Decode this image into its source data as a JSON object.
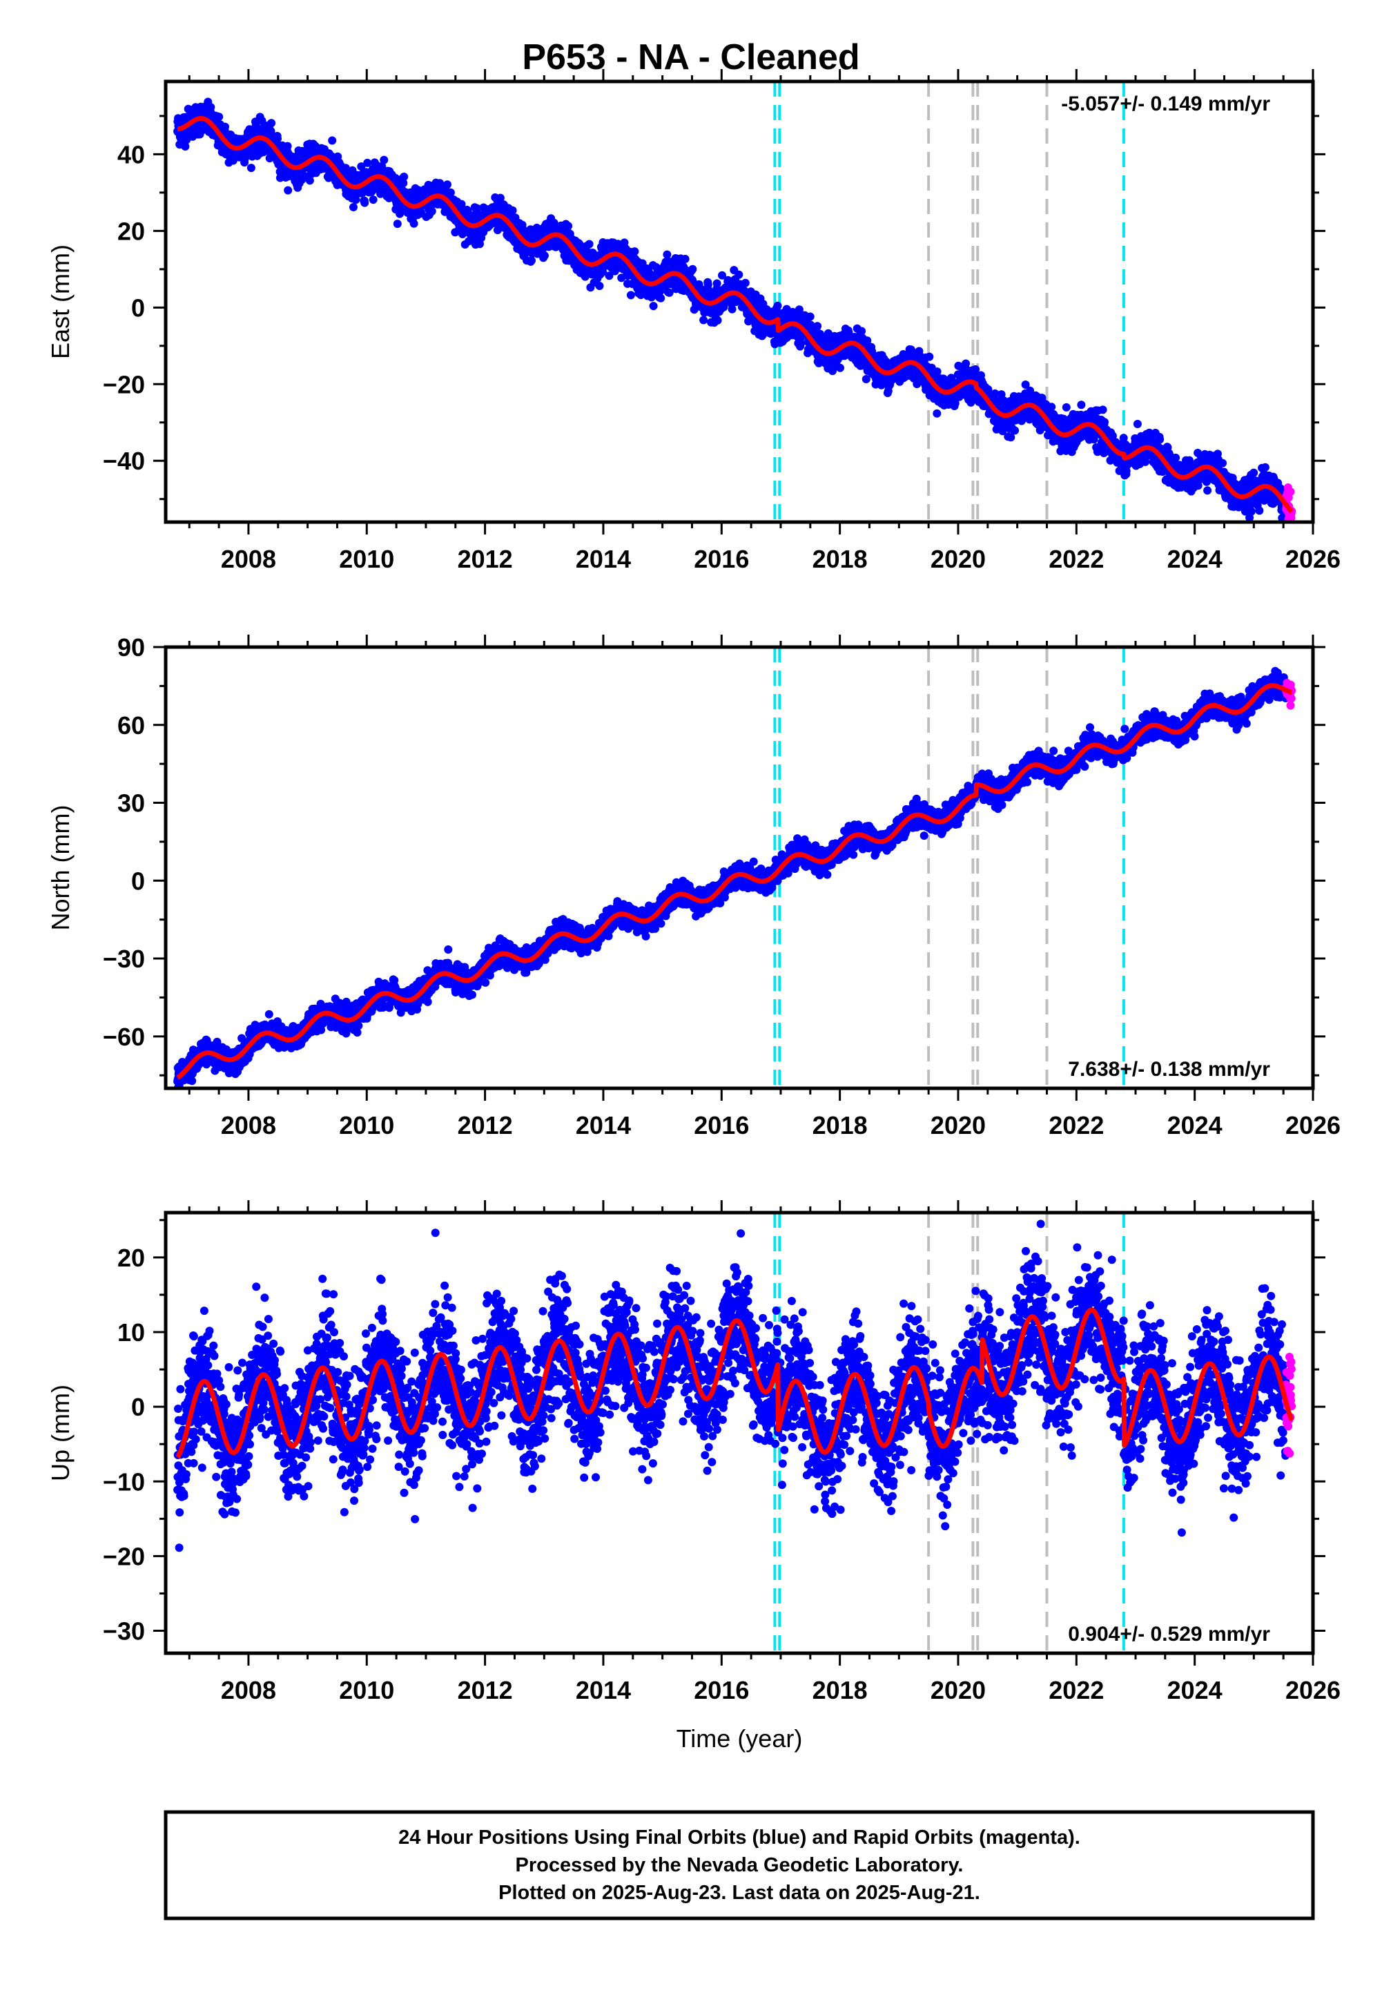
{
  "title": "P653  - NA - Cleaned",
  "chart_data": [
    {
      "type": "scatter",
      "ylabel": "East (mm)",
      "xlim": [
        2006.6,
        2026.0
      ],
      "ylim": [
        -56,
        59
      ],
      "yticks": [
        -40,
        -20,
        0,
        20,
        40
      ],
      "xticks": [
        2008,
        2010,
        2012,
        2014,
        2016,
        2018,
        2020,
        2022,
        2024,
        2026
      ],
      "rate_label": "-5.057+/- 0.149 mm/yr",
      "rate_position": "top-right",
      "model": {
        "start_year": 2006.8,
        "start_value": 49,
        "rate": -5.057,
        "seasonal_amplitude": 2.5,
        "scatter": 2.0
      },
      "offsets": [
        {
          "year": 2016.95,
          "shift": -3.0
        },
        {
          "year": 2020.3,
          "shift": -1.0
        },
        {
          "year": 2022.8,
          "shift": -1.0
        }
      ],
      "series": [
        {
          "values": "daily"
        }
      ]
    },
    {
      "type": "scatter",
      "ylabel": "North (mm)",
      "xlim": [
        2006.6,
        2026.0
      ],
      "ylim": [
        -80,
        90
      ],
      "yticks": [
        -60,
        -30,
        0,
        30,
        60,
        90
      ],
      "xticks": [
        2008,
        2010,
        2012,
        2014,
        2016,
        2018,
        2020,
        2022,
        2024,
        2026
      ],
      "rate_label": "7.638+/- 0.138 mm/yr",
      "rate_position": "bottom-right",
      "model": {
        "start_year": 2006.8,
        "start_value": -73,
        "rate": 7.638,
        "seasonal_amplitude": 3.0,
        "scatter": 2.2
      },
      "offsets": [
        {
          "year": 2020.3,
          "shift": 4.0
        }
      ],
      "series": [
        {
          "values": "daily"
        }
      ]
    },
    {
      "type": "scatter",
      "ylabel": "Up (mm)",
      "xlabel": "Time (year)",
      "xlim": [
        2006.6,
        2026.0
      ],
      "ylim": [
        -33,
        26
      ],
      "yticks": [
        -30,
        -20,
        -10,
        0,
        10,
        20
      ],
      "xticks": [
        2008,
        2010,
        2012,
        2014,
        2016,
        2018,
        2020,
        2022,
        2024,
        2026
      ],
      "rate_label": "0.904+/- 0.529 mm/yr",
      "rate_position": "bottom-right",
      "model": {
        "start_year": 2006.8,
        "start_value": -2,
        "rate": 0.904,
        "seasonal_amplitude": 5.0,
        "scatter": 4.0
      },
      "offsets": [
        {
          "year": 2016.95,
          "shift": -9.0
        },
        {
          "year": 2019.5,
          "shift": -1.0
        },
        {
          "year": 2020.4,
          "shift": 6.0
        },
        {
          "year": 2022.8,
          "shift": -9.0
        }
      ],
      "series": [
        {
          "values": "daily"
        }
      ]
    }
  ],
  "event_lines": {
    "equipment": [
      2016.9,
      2016.98,
      2022.8
    ],
    "earthquake": [
      2019.5,
      2020.25,
      2020.33,
      2021.5
    ]
  },
  "colors": {
    "final_orbits": "#0000ff",
    "rapid_orbits": "#ff00ff",
    "model": "#ff0000",
    "equipment_line": "#00e5ee",
    "earthquake_line": "#bebebe"
  },
  "data_range": {
    "first_year": 2006.8,
    "last_final_year": 2025.54,
    "last_year": 2025.64
  },
  "footer": {
    "line1": "24 Hour Positions Using Final Orbits (blue) and Rapid Orbits (magenta).",
    "line2": "Processed by the Nevada Geodetic Laboratory.",
    "line3": "Plotted on 2025-Aug-23. Last data on 2025-Aug-21."
  }
}
